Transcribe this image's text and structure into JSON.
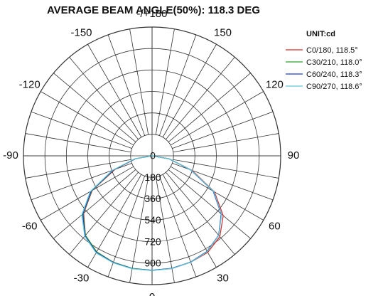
{
  "chart_data": {
    "type": "polar",
    "title": "AVERAGE BEAM ANGLE(50%): 118.3 DEG",
    "unit_label": "UNIT:cd",
    "angle_labels": [
      "-/+180",
      "150",
      "120",
      "90",
      "60",
      "30",
      "0",
      "-30",
      "-60",
      "-90",
      "-120",
      "-150"
    ],
    "angle_values": [
      180,
      150,
      120,
      90,
      60,
      30,
      0,
      -30,
      -60,
      -90,
      -120,
      -150
    ],
    "ring_labels": [
      "0",
      "180",
      "360",
      "540",
      "720",
      "900"
    ],
    "ring_values": [
      0,
      180,
      360,
      540,
      720,
      900
    ],
    "r_max": 1080,
    "grid": true,
    "legend_position": "top-right",
    "series": [
      {
        "name": "C0/180,  118.5°",
        "color": "#d62728",
        "points": [
          {
            "angle": -90,
            "value": 0
          },
          {
            "angle": -80,
            "value": 140
          },
          {
            "angle": -70,
            "value": 330
          },
          {
            "angle": -60,
            "value": 580
          },
          {
            "angle": -50,
            "value": 750
          },
          {
            "angle": -40,
            "value": 870
          },
          {
            "angle": -30,
            "value": 930
          },
          {
            "angle": -20,
            "value": 950
          },
          {
            "angle": -10,
            "value": 960
          },
          {
            "angle": 0,
            "value": 960
          },
          {
            "angle": 10,
            "value": 960
          },
          {
            "angle": 20,
            "value": 950
          },
          {
            "angle": 30,
            "value": 935
          },
          {
            "angle": 40,
            "value": 885
          },
          {
            "angle": 50,
            "value": 780
          },
          {
            "angle": 60,
            "value": 605
          },
          {
            "angle": 70,
            "value": 360
          },
          {
            "angle": 80,
            "value": 150
          },
          {
            "angle": 90,
            "value": 0
          }
        ]
      },
      {
        "name": "C30/210,  118.0°",
        "color": "#2ca02c",
        "points": [
          {
            "angle": -90,
            "value": 0
          },
          {
            "angle": -80,
            "value": 145
          },
          {
            "angle": -70,
            "value": 340
          },
          {
            "angle": -60,
            "value": 585
          },
          {
            "angle": -50,
            "value": 755
          },
          {
            "angle": -40,
            "value": 870
          },
          {
            "angle": -30,
            "value": 930
          },
          {
            "angle": -20,
            "value": 950
          },
          {
            "angle": -10,
            "value": 958
          },
          {
            "angle": 0,
            "value": 960
          },
          {
            "angle": 10,
            "value": 958
          },
          {
            "angle": 20,
            "value": 948
          },
          {
            "angle": 30,
            "value": 925
          },
          {
            "angle": 40,
            "value": 870
          },
          {
            "angle": 50,
            "value": 760
          },
          {
            "angle": 60,
            "value": 595
          },
          {
            "angle": 70,
            "value": 350
          },
          {
            "angle": 80,
            "value": 145
          },
          {
            "angle": 90,
            "value": 0
          }
        ]
      },
      {
        "name": "C60/240,  118.3°",
        "color": "#1f3fbf",
        "points": [
          {
            "angle": -90,
            "value": 0
          },
          {
            "angle": -80,
            "value": 145
          },
          {
            "angle": -70,
            "value": 345
          },
          {
            "angle": -60,
            "value": 590
          },
          {
            "angle": -50,
            "value": 760
          },
          {
            "angle": -40,
            "value": 875
          },
          {
            "angle": -30,
            "value": 935
          },
          {
            "angle": -20,
            "value": 952
          },
          {
            "angle": -10,
            "value": 960
          },
          {
            "angle": 0,
            "value": 960
          },
          {
            "angle": 10,
            "value": 958
          },
          {
            "angle": 20,
            "value": 948
          },
          {
            "angle": 30,
            "value": 925
          },
          {
            "angle": 40,
            "value": 870
          },
          {
            "angle": 50,
            "value": 758
          },
          {
            "angle": 60,
            "value": 592
          },
          {
            "angle": 70,
            "value": 345
          },
          {
            "angle": 80,
            "value": 145
          },
          {
            "angle": 90,
            "value": 0
          }
        ]
      },
      {
        "name": "C90/270,  118.6°",
        "color": "#5fc8d8",
        "points": [
          {
            "angle": -90,
            "value": 0
          },
          {
            "angle": -80,
            "value": 150
          },
          {
            "angle": -70,
            "value": 355
          },
          {
            "angle": -60,
            "value": 600
          },
          {
            "angle": -50,
            "value": 770
          },
          {
            "angle": -40,
            "value": 880
          },
          {
            "angle": -30,
            "value": 940
          },
          {
            "angle": -20,
            "value": 955
          },
          {
            "angle": -10,
            "value": 962
          },
          {
            "angle": 0,
            "value": 962
          },
          {
            "angle": 10,
            "value": 960
          },
          {
            "angle": 20,
            "value": 950
          },
          {
            "angle": 30,
            "value": 928
          },
          {
            "angle": 40,
            "value": 872
          },
          {
            "angle": 50,
            "value": 762
          },
          {
            "angle": 60,
            "value": 598
          },
          {
            "angle": 70,
            "value": 350
          },
          {
            "angle": 80,
            "value": 148
          },
          {
            "angle": 90,
            "value": 0
          }
        ]
      }
    ]
  }
}
